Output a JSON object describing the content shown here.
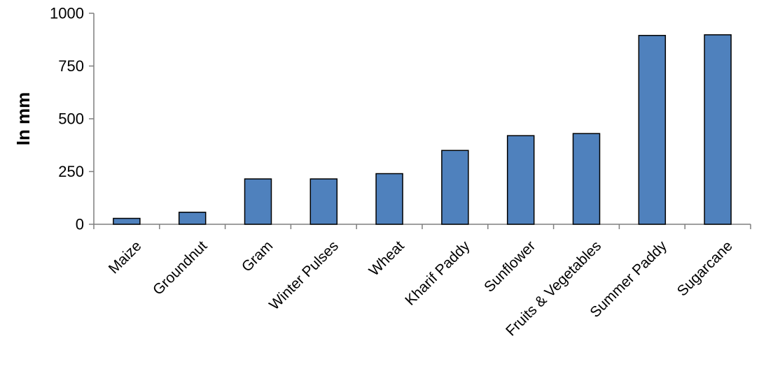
{
  "chart_data": {
    "type": "bar",
    "title": "",
    "xlabel": "",
    "ylabel": "In mm",
    "ylim": [
      0,
      1000
    ],
    "yticks": [
      0,
      250,
      500,
      750,
      1000
    ],
    "categories": [
      "Maize",
      "Groundnut",
      "Gram",
      "Winter Pulses",
      "Wheat",
      "Kharif Paddy",
      "Sunflower",
      "Fruits & Vegetables",
      "Summer Paddy",
      "Sugarcane"
    ],
    "values": [
      28,
      57,
      215,
      215,
      240,
      350,
      420,
      430,
      895,
      898
    ],
    "bar_color": "#4F81BD",
    "bar_edge_color": "#000000",
    "grid": false,
    "legend": "none"
  }
}
